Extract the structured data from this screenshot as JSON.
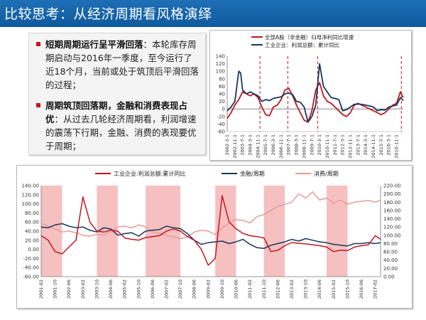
{
  "slide": {
    "title": "比较思考：从经济周期看风格演绎",
    "colors": {
      "header_bg": "#1565b0",
      "bullet_marker": "#c0171f",
      "shade": "#f6c0c0"
    }
  },
  "bullets": [
    {
      "bold": "短期周期运行呈平滑回落",
      "text": "：本轮库存周期启动与2016年一季度，至今运行了近18个月，当前或处于筑顶后平滑回落的过程；"
    },
    {
      "bold": "周期筑顶回落期，金融和消费表现占优",
      "text": "：从过去几轮经济周期看，利润增速的震荡下行期，金融、消费的表现要优于周期；"
    }
  ],
  "chart_data": [
    {
      "type": "line",
      "legend": [
        "全部A股（非金融）归母净利同比增速",
        "工业企业：利润总额：累计同比"
      ],
      "x_ticks": [
        "2002-3-1",
        "2002-11-1",
        "2003-7-1",
        "2004-3-1",
        "2004-11-1",
        "2005-7-1",
        "2006-3-1",
        "2006-11-1",
        "2007-7-1",
        "2008-3-1",
        "2008-11-1",
        "2009-7-1",
        "2010-3-1",
        "2010-11-1",
        "2011-7-1",
        "2012-3-1",
        "2012-11-1",
        "2013-7-1",
        "2014-3-1",
        "2014-11-1",
        "2015-7-1",
        "2016-3-1",
        "2016-11-1"
      ],
      "y_ticks": [
        "-60",
        "-40",
        "-20",
        "0",
        "20",
        "40",
        "60",
        "80",
        "100",
        "120",
        "140"
      ],
      "ylim": [
        -60,
        140
      ],
      "peak_markers": [
        "2005-1",
        "2007-6",
        "2010-1",
        "2017-4"
      ],
      "series": [
        {
          "name": "全部A股（非金融）归母净利同比增速",
          "color": "#c0171f",
          "x": [
            "2002-3",
            "2002-7",
            "2002-11",
            "2003-3",
            "2003-7",
            "2003-11",
            "2004-3",
            "2004-7",
            "2004-11",
            "2005-3",
            "2005-7",
            "2005-11",
            "2006-3",
            "2006-7",
            "2006-11",
            "2007-3",
            "2007-7",
            "2007-11",
            "2008-3",
            "2008-7",
            "2008-11",
            "2009-3",
            "2009-7",
            "2009-11",
            "2010-3",
            "2010-7",
            "2010-11",
            "2011-3",
            "2011-7",
            "2011-11",
            "2012-3",
            "2012-7",
            "2012-11",
            "2013-3",
            "2013-7",
            "2013-11",
            "2014-3",
            "2014-7",
            "2014-11",
            "2015-3",
            "2015-7",
            "2015-11",
            "2016-3",
            "2016-7",
            "2016-11",
            "2017-3",
            "2017-6"
          ],
          "values": [
            -25,
            -10,
            10,
            25,
            45,
            40,
            35,
            40,
            30,
            5,
            -15,
            -18,
            5,
            10,
            25,
            50,
            55,
            35,
            10,
            -10,
            -30,
            -35,
            -5,
            50,
            70,
            35,
            20,
            15,
            5,
            -5,
            -15,
            -20,
            -10,
            10,
            15,
            10,
            5,
            0,
            -5,
            -10,
            -15,
            -10,
            0,
            10,
            15,
            45,
            30
          ]
        },
        {
          "name": "工业企业：利润总额：累计同比",
          "color": "#17365d",
          "x": [
            "2002-3",
            "2002-7",
            "2002-11",
            "2003-3",
            "2003-5",
            "2003-7",
            "2003-11",
            "2004-3",
            "2004-7",
            "2004-11",
            "2005-3",
            "2005-7",
            "2005-11",
            "2006-3",
            "2006-7",
            "2006-11",
            "2007-3",
            "2007-7",
            "2007-11",
            "2008-3",
            "2008-7",
            "2008-11",
            "2009-3",
            "2009-7",
            "2009-11",
            "2010-3",
            "2010-7",
            "2010-11",
            "2011-3",
            "2011-7",
            "2011-11",
            "2012-3",
            "2012-7",
            "2012-11",
            "2013-3",
            "2013-7",
            "2013-11",
            "2014-3",
            "2014-7",
            "2014-11",
            "2015-3",
            "2015-7",
            "2015-11",
            "2016-3",
            "2016-7",
            "2016-11",
            "2017-3",
            "2017-6"
          ],
          "values": [
            -5,
            5,
            20,
            100,
            95,
            50,
            40,
            45,
            40,
            35,
            20,
            25,
            22,
            28,
            30,
            32,
            40,
            42,
            38,
            20,
            18,
            5,
            -35,
            -20,
            10,
            120,
            60,
            45,
            30,
            28,
            25,
            -5,
            -2,
            5,
            12,
            13,
            12,
            10,
            8,
            5,
            -5,
            -2,
            -3,
            5,
            8,
            10,
            30,
            22
          ]
        }
      ]
    },
    {
      "type": "line",
      "legend": [
        "工业企业:利润总额:累计同比",
        "金融/周期",
        "消费/周期"
      ],
      "x_ticks": [
        "2001-02",
        "2001-10",
        "2002-06",
        "2003-02",
        "2003-10",
        "2004-06",
        "2005-02",
        "2005-10",
        "2006-06",
        "2007-02",
        "2007-10",
        "2008-06",
        "2009-02",
        "2009-10",
        "2010-06",
        "2011-02",
        "2011-10",
        "2012-06",
        "2013-02",
        "2013-10",
        "2014-06",
        "2015-02",
        "2015-10",
        "2016-06",
        "2017-02"
      ],
      "y_left_ticks": [
        "-60.00",
        "-40.00",
        "-20.00",
        "0.00",
        "20.00",
        "40.00",
        "60.00",
        "80.00",
        "100.00",
        "120.00",
        "140.00"
      ],
      "y_right_ticks": [
        "0.00",
        "20.00",
        "40.00",
        "60.00",
        "80.00",
        "100.00",
        "120.00",
        "140.00",
        "160.00",
        "180.00",
        "200.00",
        "220.00"
      ],
      "ylim_left": [
        -60,
        140
      ],
      "ylim_right": [
        0,
        220
      ],
      "shaded_periods": [
        [
          "2001-02",
          "2002-02"
        ],
        [
          "2003-10",
          "2004-10"
        ],
        [
          "2006-02",
          "2007-10"
        ],
        [
          "2009-06",
          "2010-06"
        ],
        [
          "2011-10",
          "2012-10"
        ],
        [
          "2014-10",
          "2015-10"
        ]
      ],
      "series": [
        {
          "name": "工业企业:利润总额:累计同比",
          "color": "#c0171f",
          "axis": "left",
          "x": [
            "2001-02",
            "2001-06",
            "2001-10",
            "2002-02",
            "2002-06",
            "2002-10",
            "2003-02",
            "2003-06",
            "2003-10",
            "2004-02",
            "2004-06",
            "2004-10",
            "2005-02",
            "2005-06",
            "2005-10",
            "2006-02",
            "2006-06",
            "2006-10",
            "2007-02",
            "2007-06",
            "2007-10",
            "2008-02",
            "2008-06",
            "2008-10",
            "2009-02",
            "2009-06",
            "2009-10",
            "2010-02",
            "2010-06",
            "2010-10",
            "2011-02",
            "2011-06",
            "2011-10",
            "2012-02",
            "2012-06",
            "2012-10",
            "2013-02",
            "2013-06",
            "2013-10",
            "2014-02",
            "2014-06",
            "2014-10",
            "2015-02",
            "2015-06",
            "2015-10",
            "2016-02",
            "2016-06",
            "2016-10",
            "2017-02",
            "2017-05"
          ],
          "values": [
            30,
            20,
            -5,
            -10,
            5,
            20,
            115,
            60,
            40,
            38,
            42,
            40,
            25,
            22,
            20,
            26,
            28,
            30,
            40,
            45,
            40,
            28,
            20,
            0,
            -35,
            -20,
            118,
            60,
            45,
            35,
            30,
            28,
            25,
            -5,
            -2,
            8,
            15,
            13,
            12,
            10,
            8,
            5,
            -5,
            -2,
            -3,
            5,
            8,
            10,
            30,
            22
          ]
        },
        {
          "name": "金融/周期",
          "color": "#17365d",
          "axis": "right",
          "x": [
            "2001-02",
            "2001-06",
            "2001-10",
            "2002-02",
            "2002-06",
            "2002-10",
            "2003-02",
            "2003-06",
            "2003-10",
            "2004-02",
            "2004-06",
            "2004-10",
            "2005-02",
            "2005-06",
            "2005-10",
            "2006-02",
            "2006-06",
            "2006-10",
            "2007-02",
            "2007-06",
            "2007-10",
            "2008-02",
            "2008-06",
            "2008-10",
            "2009-02",
            "2009-06",
            "2009-10",
            "2010-02",
            "2010-06",
            "2010-10",
            "2011-02",
            "2011-06",
            "2011-10",
            "2012-02",
            "2012-06",
            "2012-10",
            "2013-02",
            "2013-06",
            "2013-10",
            "2014-02",
            "2014-06",
            "2014-10",
            "2015-02",
            "2015-06",
            "2015-10",
            "2016-02",
            "2016-06",
            "2016-10",
            "2017-02",
            "2017-05"
          ],
          "values": [
            120,
            118,
            125,
            128,
            122,
            118,
            120,
            112,
            108,
            118,
            115,
            100,
            104,
            106,
            98,
            110,
            112,
            114,
            122,
            118,
            116,
            104,
            88,
            78,
            82,
            84,
            86,
            80,
            84,
            90,
            78,
            70,
            68,
            76,
            80,
            84,
            90,
            86,
            92,
            88,
            84,
            82,
            78,
            76,
            74,
            80,
            80,
            82,
            80,
            82
          ]
        },
        {
          "name": "消费/周期",
          "color": "#e89a9a",
          "axis": "right",
          "x": [
            "2001-02",
            "2001-06",
            "2001-10",
            "2002-02",
            "2002-06",
            "2002-10",
            "2003-02",
            "2003-06",
            "2003-10",
            "2004-02",
            "2004-06",
            "2004-10",
            "2005-02",
            "2005-06",
            "2005-10",
            "2006-02",
            "2006-06",
            "2006-10",
            "2007-02",
            "2007-06",
            "2007-10",
            "2008-02",
            "2008-06",
            "2008-10",
            "2009-02",
            "2009-06",
            "2009-10",
            "2010-02",
            "2010-06",
            "2010-10",
            "2011-02",
            "2011-06",
            "2011-10",
            "2012-02",
            "2012-06",
            "2012-10",
            "2013-02",
            "2013-06",
            "2013-10",
            "2014-02",
            "2014-06",
            "2014-10",
            "2015-02",
            "2015-06",
            "2015-10",
            "2016-02",
            "2016-06",
            "2016-10",
            "2017-02",
            "2017-05"
          ],
          "values": [
            130,
            122,
            115,
            108,
            110,
            106,
            100,
            98,
            102,
            100,
            110,
            120,
            122,
            118,
            125,
            120,
            108,
            104,
            100,
            96,
            92,
            96,
            108,
            112,
            110,
            102,
            118,
            130,
            138,
            136,
            130,
            145,
            150,
            160,
            170,
            175,
            180,
            200,
            190,
            205,
            185,
            190,
            178,
            185,
            175,
            180,
            182,
            184,
            180,
            185
          ]
        }
      ]
    }
  ]
}
